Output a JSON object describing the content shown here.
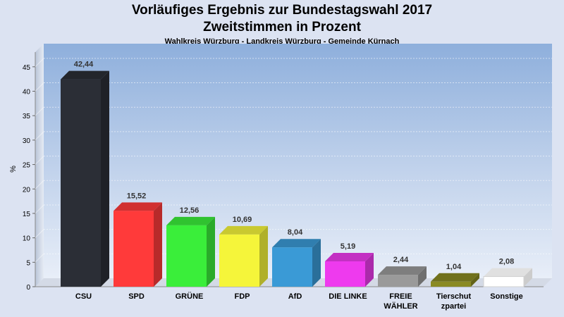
{
  "title": "Vorläufiges Ergebnis zur Bundestagswahl 2017",
  "subtitle": "Zweitstimmen in Prozent",
  "caption": "Wahlkreis Würzburg - Landkreis Würzburg - Gemeinde Kürnach",
  "chart_data": {
    "type": "bar",
    "categories": [
      "CSU",
      "SPD",
      "GRÜNE",
      "FDP",
      "AfD",
      "DIE LINKE",
      "FREIE WÄHLER",
      "Tierschutzpartei",
      "Sonstige"
    ],
    "category_display_lines": [
      [
        "CSU"
      ],
      [
        "SPD"
      ],
      [
        "GRÜNE"
      ],
      [
        "FDP"
      ],
      [
        "AfD"
      ],
      [
        "DIE LINKE"
      ],
      [
        "FREIE",
        "WÄHLER"
      ],
      [
        "Tierschut",
        "zpartei"
      ],
      [
        "Sonstige"
      ]
    ],
    "values": [
      42.44,
      15.52,
      12.56,
      10.69,
      8.04,
      5.19,
      2.44,
      1.04,
      2.08
    ],
    "value_labels": [
      "42,44",
      "15,52",
      "12,56",
      "10,69",
      "8,04",
      "5,19",
      "2,44",
      "1,04",
      "2,08"
    ],
    "colors": [
      "#2b2e36",
      "#ff3a3a",
      "#3aee3a",
      "#f5f53a",
      "#3a9ad6",
      "#ee3aee",
      "#9a9a9a",
      "#8a8a22",
      "#ffffff"
    ],
    "ylabel": "%",
    "ylim": [
      0,
      48
    ],
    "yticks": [
      0,
      5,
      10,
      15,
      20,
      25,
      30,
      35,
      40,
      45
    ],
    "grid": true,
    "legend": "none"
  }
}
